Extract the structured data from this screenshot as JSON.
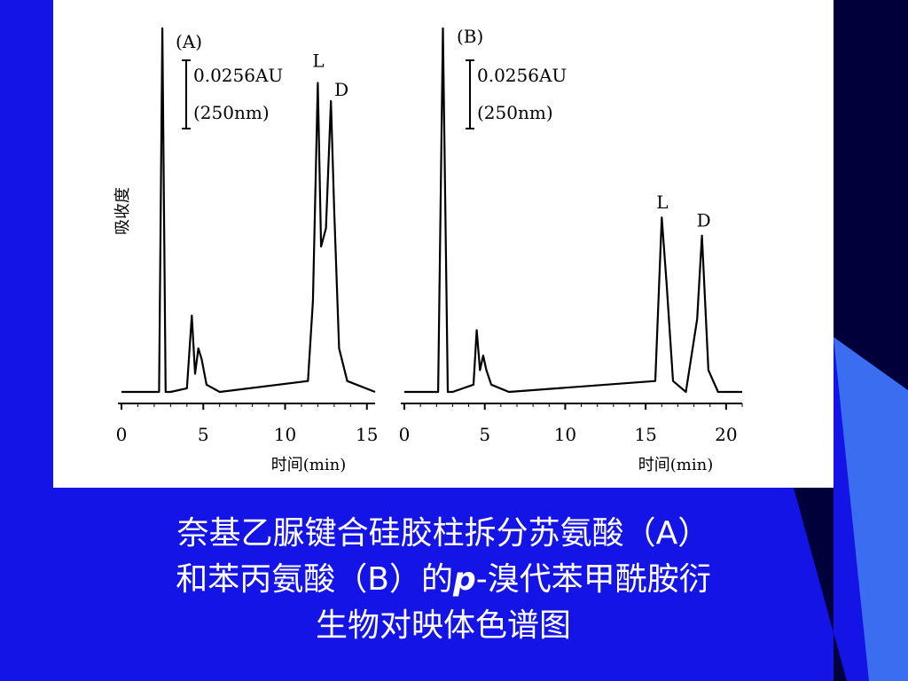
{
  "slide": {
    "colors": {
      "background": "#1414e6",
      "corner_dark": "#00003a",
      "corner_light": "#3a6df0",
      "panel": "#ffffff",
      "ink": "#000000"
    },
    "caption": {
      "line1": "奈基乙脲键合硅胶柱拆分苏氨酸（A）",
      "line2_pre": "和苯丙氨酸（B）的",
      "line2_italic": "p",
      "line2_post": "-溴代苯甲酰胺衍",
      "line3": "生物对映体色谱图"
    }
  },
  "chart_data": [
    {
      "type": "line",
      "panel_label": "(A)",
      "scale_bar_label": "0.0256AU",
      "scale_bar_sub": "(250nm)",
      "ylabel": "吸收度",
      "xlabel": "时间(min)",
      "xlim": [
        0,
        15.5
      ],
      "xticks": [
        0,
        5,
        10,
        15
      ],
      "ylim": [
        0,
        1
      ],
      "peak_labels": [
        "L",
        "D"
      ],
      "x": [
        0,
        2.3,
        2.5,
        2.7,
        3.0,
        4.0,
        4.3,
        4.5,
        4.7,
        4.9,
        5.2,
        6.0,
        11.4,
        11.7,
        12.0,
        12.2,
        12.5,
        12.8,
        13.0,
        13.3,
        13.8,
        15.5
      ],
      "y": [
        0.0,
        0.0,
        1.0,
        0.0,
        0.0,
        0.01,
        0.21,
        0.05,
        0.12,
        0.09,
        0.02,
        0.0,
        0.03,
        0.25,
        0.85,
        0.4,
        0.45,
        0.8,
        0.5,
        0.12,
        0.03,
        0.0
      ]
    },
    {
      "type": "line",
      "panel_label": "(B)",
      "scale_bar_label": "0.0256AU",
      "scale_bar_sub": "(250nm)",
      "xlabel": "时间(min)",
      "xlim": [
        0,
        21
      ],
      "xticks": [
        0,
        5,
        10,
        15,
        20
      ],
      "ylim": [
        0,
        1
      ],
      "peak_labels": [
        "L",
        "D"
      ],
      "x": [
        0,
        2.1,
        2.4,
        2.7,
        3.0,
        4.3,
        4.5,
        4.7,
        4.9,
        5.1,
        5.4,
        6.5,
        15.6,
        16.0,
        16.3,
        16.7,
        17.5,
        18.2,
        18.5,
        18.9,
        19.5,
        21.0
      ],
      "y": [
        0.0,
        0.0,
        1.0,
        0.0,
        0.0,
        0.02,
        0.17,
        0.06,
        0.1,
        0.06,
        0.02,
        0.0,
        0.03,
        0.48,
        0.3,
        0.03,
        0.0,
        0.2,
        0.43,
        0.06,
        0.0,
        0.0
      ]
    }
  ]
}
